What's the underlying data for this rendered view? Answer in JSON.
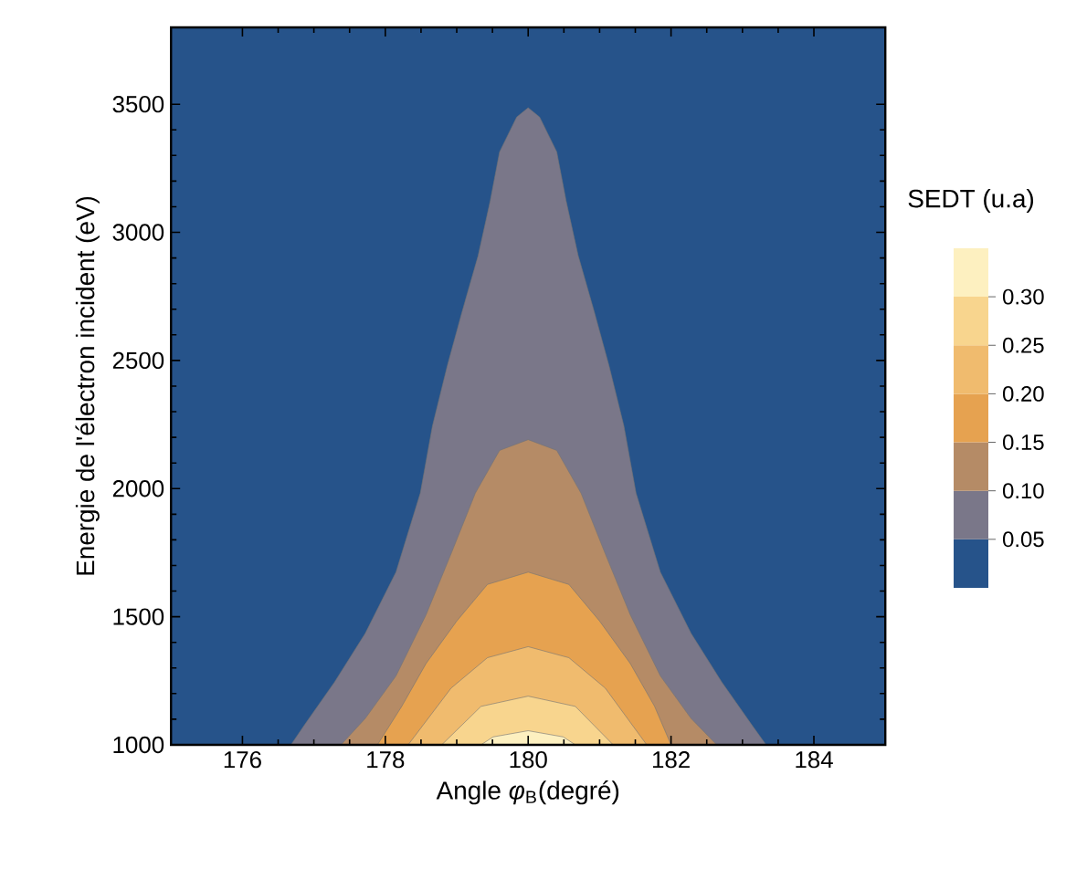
{
  "chart_data": {
    "type": "area",
    "xlabel": "Angle *φ*$_{B}$(degré)",
    "ylabel": "Energie de l'électron incident (eV)",
    "clabel": "SEDT (u.a)",
    "xlim": [
      175,
      185
    ],
    "ylim": [
      1000,
      3800
    ],
    "xticks": [
      176,
      178,
      180,
      182,
      184
    ],
    "yticks": [
      1000,
      1500,
      2000,
      2500,
      3000,
      3500
    ],
    "bands": [
      {
        "axis": "y",
        "from": 1000,
        "to": 3800,
        "color": "#26538a"
      }
    ],
    "clim": [
      0,
      0.35
    ],
    "cticks": [
      0.05,
      {
        "value": 0.1,
        "label": "0.10"
      },
      0.15,
      {
        "value": 0.2,
        "label": "0.20"
      },
      0.25,
      {
        "value": 0.3,
        "label": "0.30"
      }
    ],
    "series": [
      {
        "color": "#7a7789",
        "x": [
          176.68,
          176.87,
          177.29,
          177.72,
          178.15,
          178.49,
          178.66,
          178.87,
          179.08,
          179.3,
          179.47,
          179.6,
          179.84,
          180,
          180.16,
          180.4,
          180.53,
          180.7,
          180.92,
          181.13,
          181.34,
          181.51,
          181.85,
          182.28,
          182.71,
          183.13,
          183.33
        ],
        "values": [
          1000,
          1078,
          1245,
          1435,
          1674,
          1982,
          2244,
          2481,
          2695,
          2909,
          3124,
          3314,
          3450,
          3486,
          3450,
          3314,
          3124,
          2909,
          2695,
          2481,
          2244,
          1982,
          1674,
          1435,
          1245,
          1078,
          1000
        ]
      },
      {
        "color": "#b58b66",
        "x": [
          177.38,
          177.72,
          178.15,
          178.57,
          178.92,
          179.26,
          179.6,
          180,
          180.4,
          180.74,
          181.08,
          181.43,
          181.85,
          182.28,
          182.64
        ],
        "values": [
          1000,
          1103,
          1269,
          1507,
          1745,
          1982,
          2149,
          2191,
          2149,
          1982,
          1745,
          1507,
          1269,
          1103,
          1000
        ]
      },
      {
        "color": "#e6a250",
        "x": [
          177.89,
          178.23,
          178.57,
          179,
          179.43,
          180,
          180.57,
          181,
          181.43,
          181.77,
          182
        ],
        "values": [
          1000,
          1150,
          1317,
          1483,
          1626,
          1674,
          1626,
          1483,
          1317,
          1150,
          1000
        ]
      },
      {
        "color": "#f0bb6e",
        "x": [
          178.32,
          178.92,
          179.43,
          180,
          180.57,
          181.08,
          181.66
        ],
        "values": [
          1000,
          1221,
          1340,
          1383,
          1340,
          1221,
          1000
        ]
      },
      {
        "color": "#f8d58e",
        "x": [
          178.79,
          179.34,
          180,
          180.66,
          181.19
        ],
        "values": [
          1000,
          1150,
          1190,
          1150,
          1000
        ]
      },
      {
        "color": "#fdf0c0",
        "x": [
          179.34,
          179.51,
          180,
          180.49,
          180.66
        ],
        "values": [
          1000,
          1031,
          1055,
          1031,
          1000
        ]
      }
    ]
  }
}
